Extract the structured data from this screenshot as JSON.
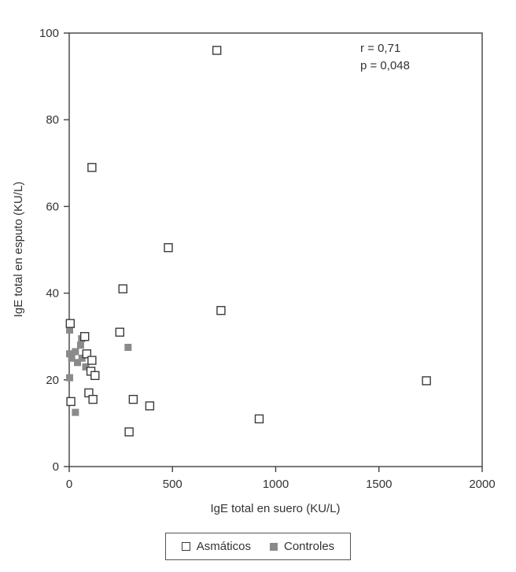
{
  "chart_data": {
    "type": "scatter",
    "title": "",
    "xlabel": "IgE total en suero (KU/L)",
    "ylabel": "IgE total en esputo (KU/L)",
    "xlim": [
      0,
      2000
    ],
    "ylim": [
      0,
      100
    ],
    "xticks": [
      0,
      500,
      1000,
      1500,
      2000
    ],
    "yticks": [
      0,
      20,
      40,
      60,
      80,
      100
    ],
    "grid": false,
    "legend_position": "bottom-center",
    "annotation": {
      "line1": "r = 0,71",
      "line2": "p = 0,048"
    },
    "series": [
      {
        "name": "Asmáticos",
        "marker": "open-square",
        "fill": "#ffffff",
        "stroke": "#3a3a3a",
        "size": 10,
        "points": [
          [
            5,
            33
          ],
          [
            8,
            15
          ],
          [
            95,
            17
          ],
          [
            115,
            15.5
          ],
          [
            75,
            30
          ],
          [
            85,
            26
          ],
          [
            110,
            69
          ],
          [
            110,
            24.5
          ],
          [
            105,
            22
          ],
          [
            125,
            21
          ],
          [
            245,
            31
          ],
          [
            260,
            41
          ],
          [
            290,
            8
          ],
          [
            310,
            15.5
          ],
          [
            390,
            14
          ],
          [
            480,
            50.5
          ],
          [
            715,
            96
          ],
          [
            735,
            36
          ],
          [
            920,
            11
          ],
          [
            1730,
            19.8
          ]
        ]
      },
      {
        "name": "Controles",
        "marker": "filled-square",
        "fill": "#8a8a8a",
        "stroke": "none",
        "size": 9,
        "points": [
          [
            2,
            31.5
          ],
          [
            2,
            26
          ],
          [
            12,
            25
          ],
          [
            30,
            26.5
          ],
          [
            40,
            24
          ],
          [
            55,
            28
          ],
          [
            62,
            25
          ],
          [
            2,
            20.5
          ],
          [
            30,
            12.5
          ],
          [
            80,
            23
          ],
          [
            60,
            29.5
          ],
          [
            285,
            27.5
          ]
        ]
      }
    ]
  }
}
